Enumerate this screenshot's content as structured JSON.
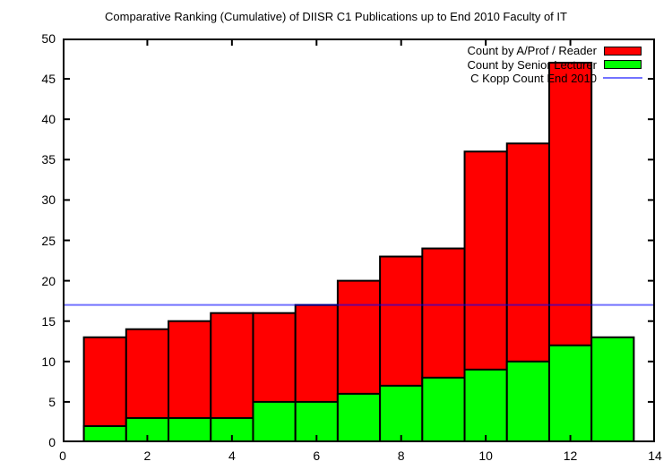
{
  "title": "Comparative Ranking (Cumulative) of DIISR C1 Publications up to End 2010 Faculty of IT",
  "legend": {
    "position": "top-right",
    "entries": [
      {
        "label": "Count by A/Prof / Reader",
        "swatch": "box",
        "color": "#ff0000"
      },
      {
        "label": "Count by Senior Lecturer",
        "swatch": "box",
        "color": "#00ff00"
      },
      {
        "label": "C Kopp Count End 2010",
        "swatch": "line",
        "color": "#0000ff"
      }
    ]
  },
  "chart_data": {
    "type": "bar",
    "title": "Comparative Ranking (Cumulative) of DIISR C1 Publications up to End 2010 Faculty of IT",
    "xlabel": "",
    "ylabel": "",
    "xlim": [
      0,
      14
    ],
    "ylim": [
      0,
      50
    ],
    "x_ticks": [
      0,
      2,
      4,
      6,
      8,
      10,
      12,
      14
    ],
    "y_ticks": [
      0,
      5,
      10,
      15,
      20,
      25,
      30,
      35,
      40,
      45,
      50
    ],
    "grid": false,
    "legend_position": "top-right",
    "bar_width": 1,
    "categories": [
      1,
      2,
      3,
      4,
      5,
      6,
      7,
      8,
      9,
      10,
      11,
      12,
      13
    ],
    "series": [
      {
        "name": "Count by A/Prof / Reader",
        "kind": "bars",
        "color": "#ff0000",
        "values": [
          13,
          14,
          15,
          16,
          16,
          17,
          20,
          23,
          24,
          36,
          37,
          47,
          null
        ]
      },
      {
        "name": "Count by Senior Lecturer",
        "kind": "bars",
        "color": "#00ff00",
        "values": [
          2,
          3,
          3,
          3,
          5,
          5,
          6,
          7,
          8,
          9,
          10,
          12,
          13
        ]
      },
      {
        "name": "C Kopp Count End 2010",
        "kind": "hline",
        "color": "#0000ff",
        "value": 17
      }
    ]
  }
}
